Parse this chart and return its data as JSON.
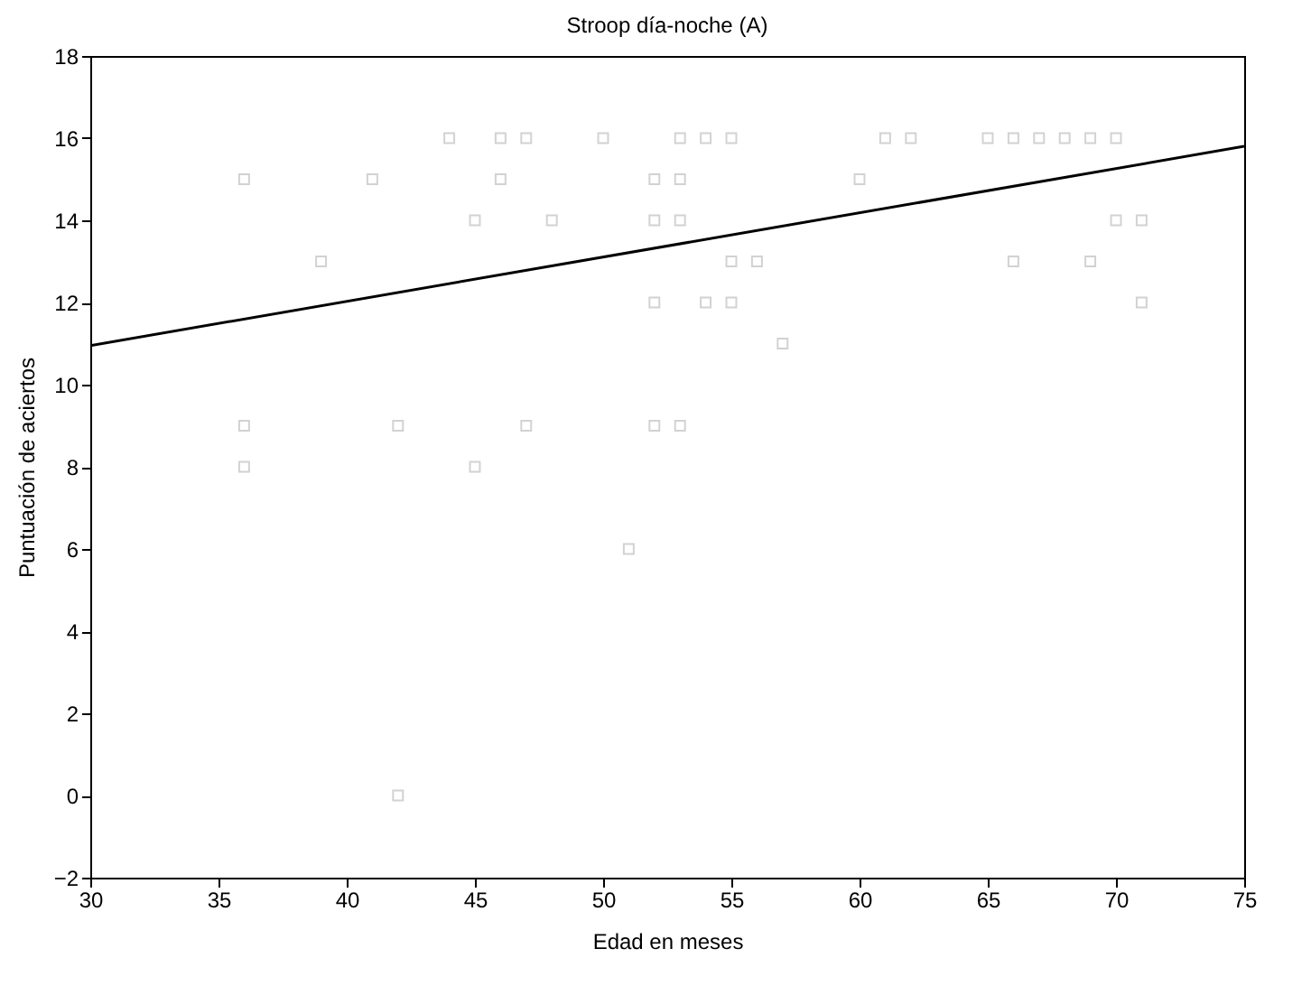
{
  "chart_data": {
    "type": "scatter",
    "title": "Stroop día-noche (A)",
    "xlabel": "Edad en meses",
    "ylabel": "Puntuación de aciertos",
    "xlim": [
      30,
      75
    ],
    "ylim": [
      -2,
      18
    ],
    "xticks": [
      30,
      35,
      40,
      45,
      50,
      55,
      60,
      65,
      70,
      75
    ],
    "yticks": [
      -2,
      0,
      2,
      4,
      6,
      8,
      10,
      12,
      14,
      16,
      18
    ],
    "grid": false,
    "series": [
      {
        "color": "#c0c0c0",
        "marker": "square",
        "x": [
          44,
          46,
          47,
          50,
          53,
          54,
          55,
          61,
          62,
          65,
          66,
          67,
          68,
          69,
          70,
          36,
          41,
          46,
          52,
          53,
          60,
          45,
          48,
          52,
          53,
          70,
          71,
          39,
          55,
          56,
          66,
          69,
          52,
          54,
          55,
          71,
          57,
          36,
          42,
          47,
          52,
          53,
          36,
          45,
          51,
          42
        ],
        "values": [
          16,
          16,
          16,
          16,
          16,
          16,
          16,
          16,
          16,
          16,
          16,
          16,
          16,
          16,
          16,
          15,
          15,
          15,
          15,
          15,
          15,
          14,
          14,
          14,
          14,
          14,
          14,
          13,
          13,
          13,
          13,
          13,
          12,
          12,
          12,
          12,
          11,
          9,
          9,
          9,
          9,
          9,
          8,
          8,
          6,
          0
        ]
      },
      {
        "type": "line",
        "color": "#000000",
        "x": [
          30,
          75
        ],
        "values": [
          10.95,
          15.8
        ]
      }
    ]
  }
}
